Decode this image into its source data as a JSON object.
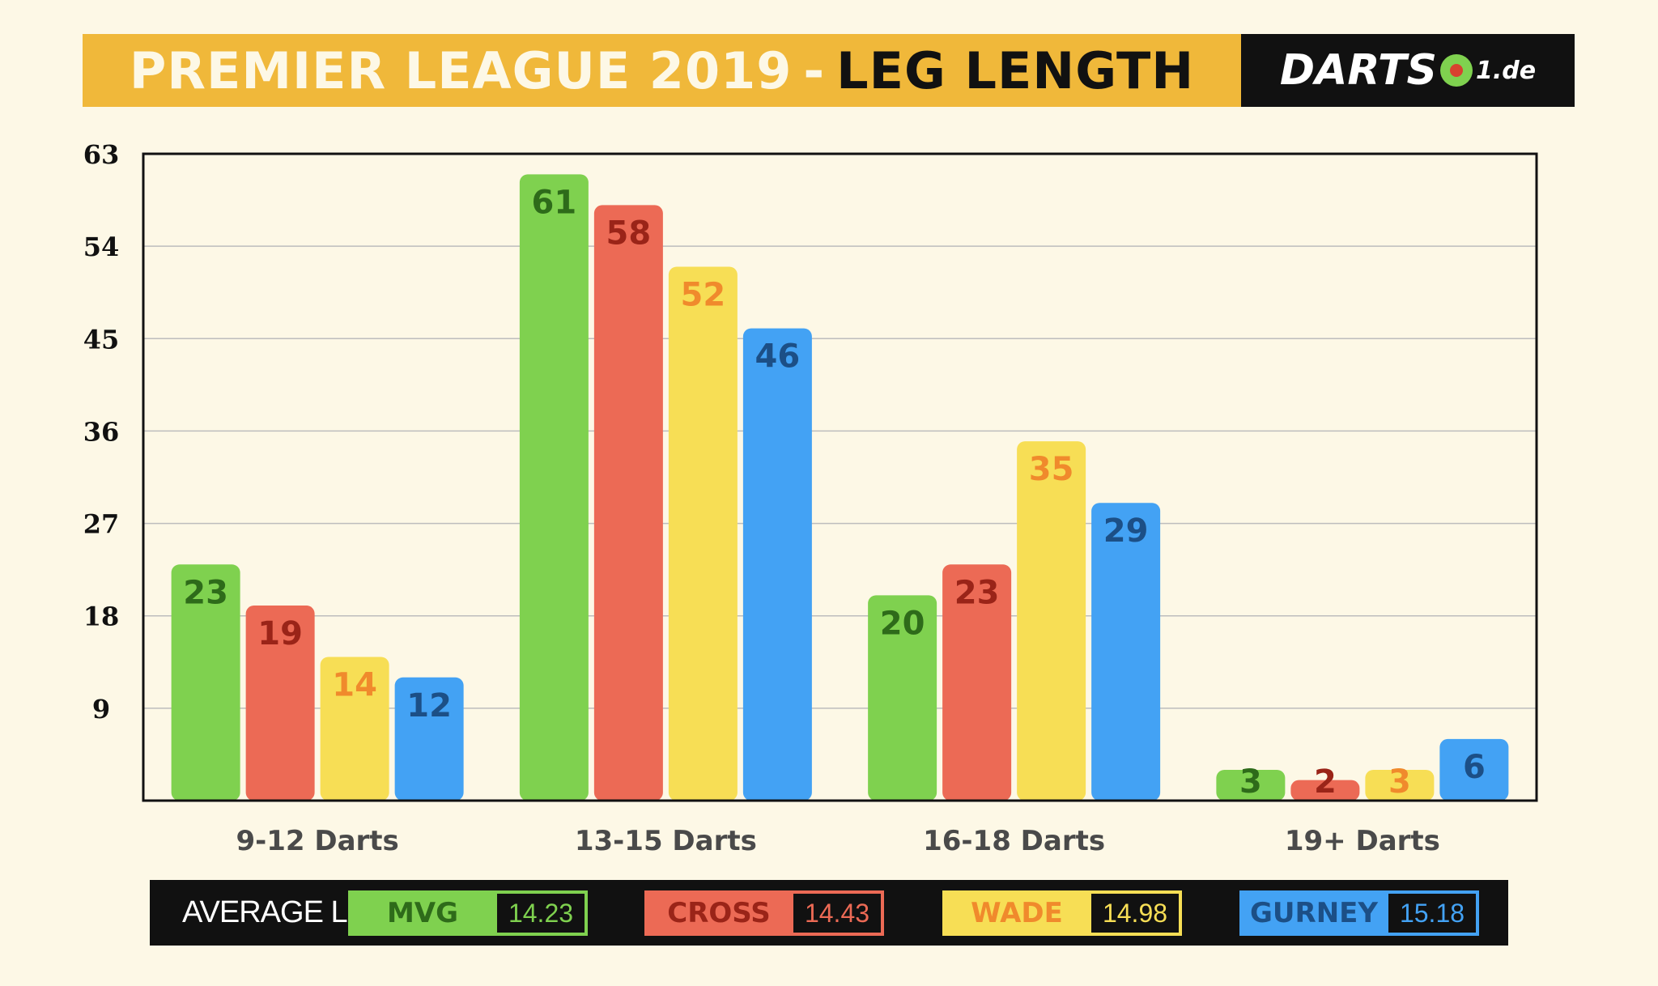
{
  "header": {
    "title_main": "PREMIER LEAGUE 2019",
    "title_sep": "-",
    "title_accent": "LEG LENGTH",
    "logo_prefix": "DARTS",
    "logo_suffix": "1.de"
  },
  "colors": {
    "background": "#fdf8e6",
    "header": "#f0b83a",
    "mvg": "#7fd14f",
    "cross": "#ec6a55",
    "wade": "#f7de55",
    "gurney": "#43a2f4"
  },
  "chart_data": {
    "type": "bar",
    "categories": [
      "9-12 Darts",
      "13-15 Darts",
      "16-18 Darts",
      "19+ Darts"
    ],
    "series": [
      {
        "name": "MVG",
        "values": [
          23,
          61,
          20,
          3
        ],
        "color": "#7fd14f",
        "label_color": "#2e6b1a"
      },
      {
        "name": "CROSS",
        "values": [
          19,
          58,
          23,
          2
        ],
        "color": "#ec6a55",
        "label_color": "#9a2418"
      },
      {
        "name": "WADE",
        "values": [
          14,
          52,
          35,
          3
        ],
        "color": "#f7de55",
        "label_color": "#f08a2c"
      },
      {
        "name": "GURNEY",
        "values": [
          12,
          46,
          29,
          6
        ],
        "color": "#43a2f4",
        "label_color": "#1c4f86"
      }
    ],
    "ylim": [
      0,
      63
    ],
    "yticks": [
      "9",
      "18",
      "27",
      "36",
      "45",
      "54",
      "63"
    ],
    "grid": true
  },
  "legend": {
    "title": "AVERAGE LEG",
    "items": [
      {
        "name": "MVG",
        "value": "14.23",
        "color": "#7fd14f",
        "text_color": "#2e6b1a",
        "value_color": "#7fd14f"
      },
      {
        "name": "CROSS",
        "value": "14.43",
        "color": "#ec6a55",
        "text_color": "#9a2418",
        "value_color": "#ec6a55"
      },
      {
        "name": "WADE",
        "value": "14.98",
        "color": "#f7de55",
        "text_color": "#f08a2c",
        "value_color": "#f7de55"
      },
      {
        "name": "GURNEY",
        "value": "15.18",
        "color": "#43a2f4",
        "text_color": "#1c4f86",
        "value_color": "#43a2f4"
      }
    ]
  }
}
